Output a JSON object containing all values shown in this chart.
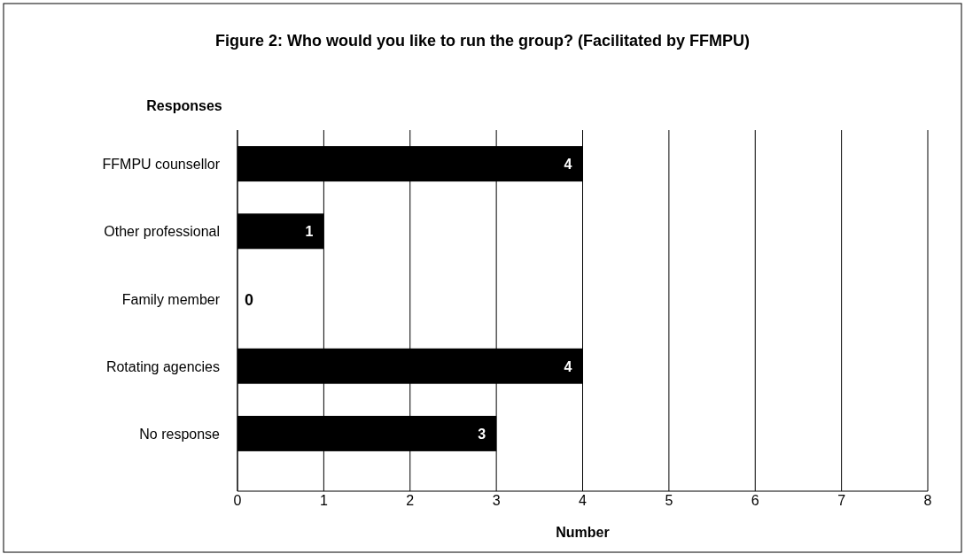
{
  "chart_data": {
    "type": "bar",
    "orientation": "horizontal",
    "title": "Figure 2: Who would you like to run the group? (Facilitated by FFMPU)",
    "ylabel": "Responses",
    "xlabel": "Number",
    "categories": [
      "FFMPU counsellor",
      "Other professional",
      "Family member",
      "Rotating agencies",
      "No response"
    ],
    "values": [
      4,
      1,
      0,
      4,
      3
    ],
    "color": "#000000",
    "xlim": [
      0,
      8
    ],
    "xticks": [
      0,
      1,
      2,
      3,
      4,
      5,
      6,
      7,
      8
    ],
    "grid": "x",
    "data_labels": true
  }
}
